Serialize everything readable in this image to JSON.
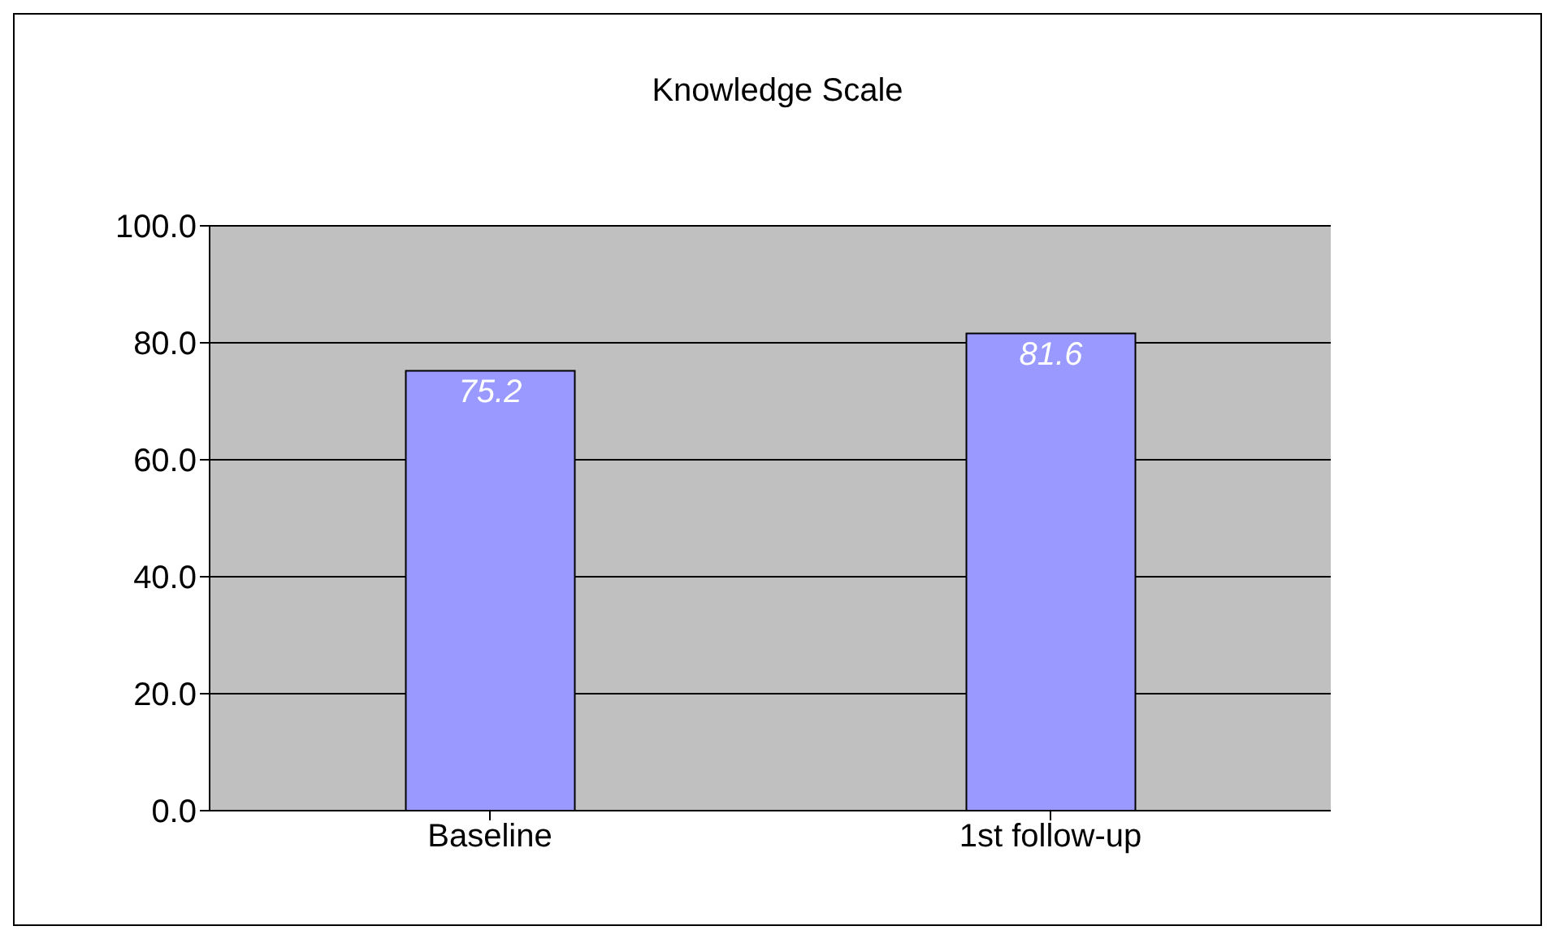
{
  "chart_data": {
    "type": "bar",
    "title": "Knowledge Scale",
    "categories": [
      "Baseline",
      "1st follow-up"
    ],
    "values": [
      75.2,
      81.6
    ],
    "color": "#9999ff",
    "ylim": [
      0,
      100
    ],
    "yticks": [
      {
        "value": 0,
        "label": "0.0"
      },
      {
        "value": 20,
        "label": "20.0"
      },
      {
        "value": 40,
        "label": "40.0"
      },
      {
        "value": 60,
        "label": "60.0"
      },
      {
        "value": 80,
        "label": "80.0"
      },
      {
        "value": 100,
        "label": "100.0"
      }
    ],
    "grid": "y",
    "data_labels": true
  }
}
